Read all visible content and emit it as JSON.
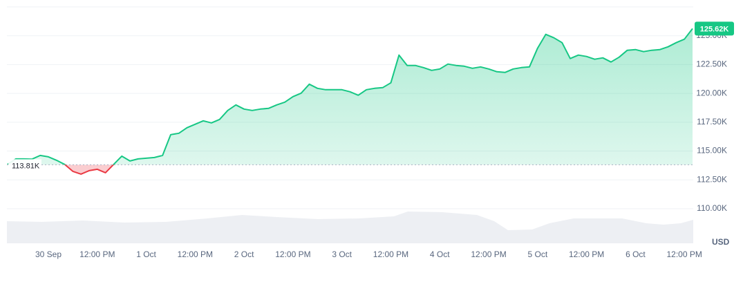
{
  "chart_data": {
    "type": "line",
    "categories": [
      null,
      null,
      null,
      null,
      null,
      "30 Sep",
      null,
      null,
      null,
      null,
      null,
      "12:00 PM",
      null,
      null,
      null,
      null,
      null,
      "1 Oct",
      null,
      null,
      null,
      null,
      null,
      "12:00 PM",
      null,
      null,
      null,
      null,
      null,
      "2 Oct",
      null,
      null,
      null,
      null,
      null,
      "12:00 PM",
      null,
      null,
      null,
      null,
      null,
      "3 Oct",
      null,
      null,
      null,
      null,
      null,
      "12:00 PM",
      null,
      null,
      null,
      null,
      null,
      "4 Oct",
      null,
      null,
      null,
      null,
      null,
      "12:00 PM",
      null,
      null,
      null,
      null,
      null,
      "5 Oct",
      null,
      null,
      null,
      null,
      null,
      "12:00 PM",
      null,
      null,
      null,
      null,
      null,
      "6 Oct",
      null,
      null,
      null,
      null,
      null,
      "12:00 PM",
      null
    ],
    "series": [
      {
        "color": "#16c784",
        "values": [
          113850,
          114320,
          114320,
          114300,
          114620,
          114500,
          114200,
          113840,
          113240,
          113000,
          113300,
          113420,
          113120,
          113840,
          114560,
          114140,
          114320,
          114380,
          114440,
          114620,
          116420,
          116540,
          117020,
          117320,
          117620,
          117440,
          117740,
          118520,
          119000,
          118640,
          118520,
          118640,
          118700,
          119000,
          119240,
          119720,
          120020,
          120800,
          120440,
          120320,
          120320,
          120320,
          120140,
          119840,
          120320,
          120440,
          120500,
          120920,
          123320,
          122420,
          122420,
          122240,
          122000,
          122120,
          122540,
          122420,
          122360,
          122180,
          122300,
          122120,
          121880,
          121820,
          122120,
          122240,
          122300,
          123920,
          125120,
          124820,
          124400,
          123020,
          123320,
          123200,
          122960,
          123080,
          122720,
          123140,
          123740,
          123800,
          123620,
          123740,
          123800,
          124040,
          124400,
          124700,
          125620
        ]
      }
    ],
    "below_color": "#ea3943",
    "baseline": {
      "value": 113810,
      "label": "113.81K"
    },
    "last_price": {
      "value": 125620,
      "label": "125.62K"
    },
    "ylim": [
      107000,
      127500
    ],
    "yticks": [
      {
        "value": 110000,
        "label": "110.00K"
      },
      {
        "value": 112500,
        "label": "112.50K"
      },
      {
        "value": 115000,
        "label": "115.00K"
      },
      {
        "value": 117500,
        "label": "117.50K"
      },
      {
        "value": 120000,
        "label": "120.00K"
      },
      {
        "value": 122500,
        "label": "122.50K"
      },
      {
        "value": 125000,
        "label": "125.00K"
      }
    ],
    "grid": true,
    "unit_label": "USD"
  }
}
